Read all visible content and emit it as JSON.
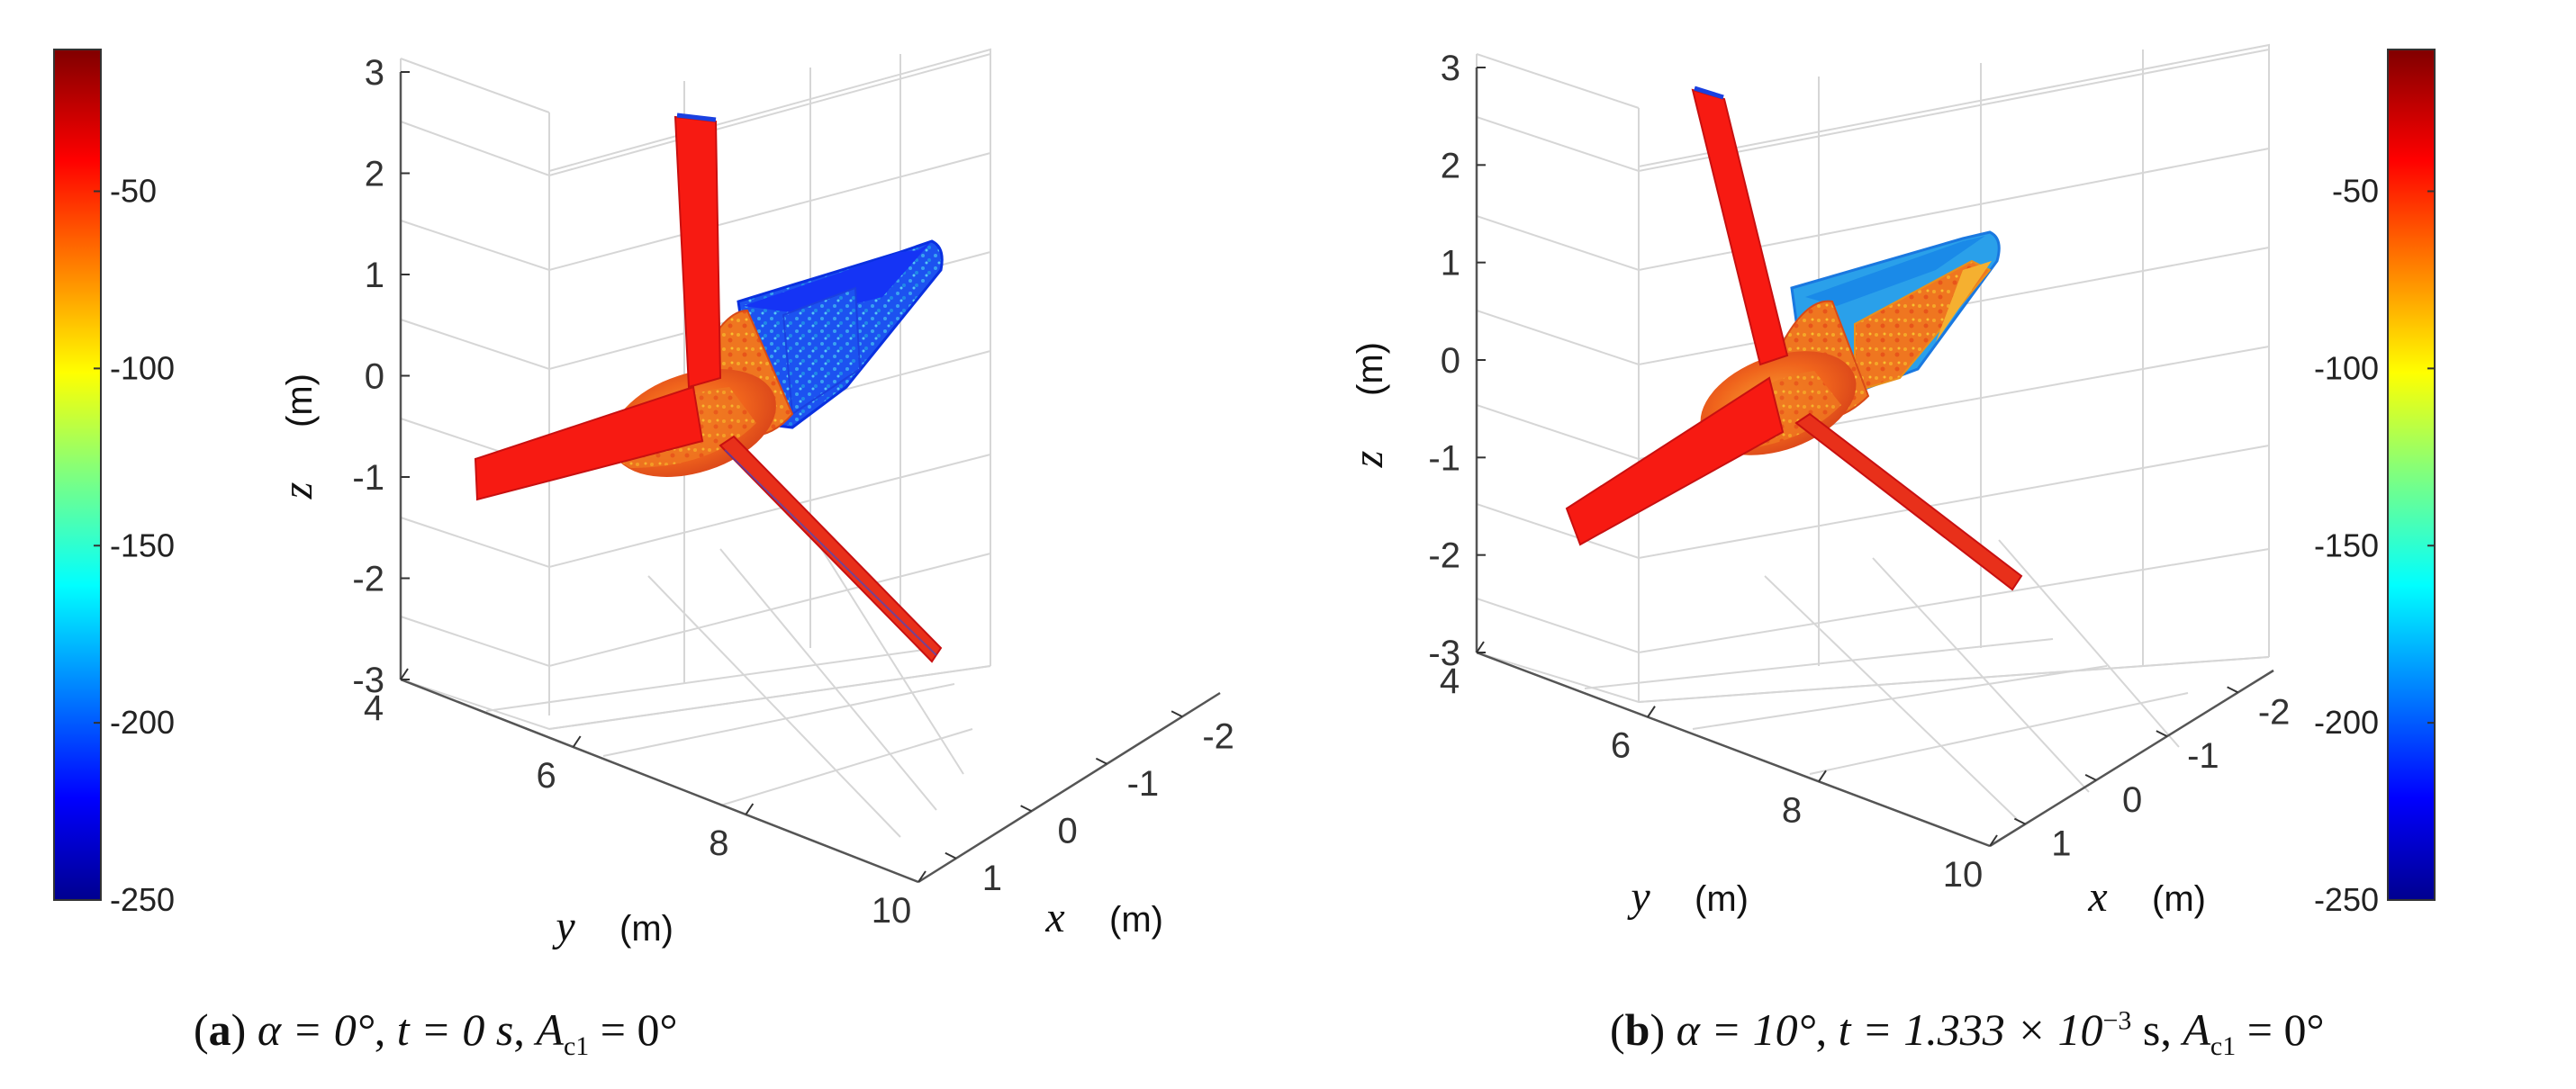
{
  "chart_data": [
    {
      "id": "a",
      "type": "3d-surface",
      "title": "",
      "x_axis": {
        "label": "x",
        "unit": "(m)",
        "ticks": [
          "-2",
          "-1",
          "0",
          "1"
        ],
        "range": [
          -2.5,
          1.5
        ]
      },
      "y_axis": {
        "label": "y",
        "unit": "(m)",
        "ticks": [
          "4",
          "6",
          "8",
          "10"
        ],
        "range": [
          4,
          10
        ]
      },
      "z_axis": {
        "label": "z",
        "unit": "(m)",
        "ticks": [
          "3",
          "2",
          "1",
          "0",
          "-1",
          "-2",
          "-3"
        ],
        "range": [
          -3,
          3
        ]
      },
      "colorbar": {
        "ticks": [
          "-50",
          "-100",
          "-150",
          "-200",
          "-250"
        ],
        "range": [
          -250,
          -10
        ],
        "colormap": "jet",
        "placement": "left"
      },
      "caption": {
        "letter": "a",
        "alpha": "α = 0°",
        "t": "t = 0 s",
        "A_pre": "A",
        "A_sub": "c1",
        "A_post": " = 0°"
      },
      "surface_colors": {
        "blade": "#f71a12",
        "hub": "#f05818",
        "body": "#1534f5",
        "body_texture": "#2e8ae8"
      }
    },
    {
      "id": "b",
      "type": "3d-surface",
      "title": "",
      "x_axis": {
        "label": "x",
        "unit": "(m)",
        "ticks": [
          "-2",
          "-1",
          "0",
          "1"
        ],
        "range": [
          -2.5,
          1.5
        ]
      },
      "y_axis": {
        "label": "y",
        "unit": "(m)",
        "ticks": [
          "4",
          "6",
          "8",
          "10"
        ],
        "range": [
          4,
          10
        ]
      },
      "z_axis": {
        "label": "z",
        "unit": "(m)",
        "ticks": [
          "3",
          "2",
          "1",
          "0",
          "-1",
          "-2",
          "-3"
        ],
        "range": [
          -3,
          3
        ]
      },
      "colorbar": {
        "ticks": [
          "-50",
          "-100",
          "-150",
          "-200",
          "-250"
        ],
        "range": [
          -250,
          -10
        ],
        "colormap": "jet",
        "placement": "right"
      },
      "caption": {
        "letter": "b",
        "alpha": "α = 10°",
        "t_pre": "t = 1.333 × 10",
        "t_exp": "−3",
        "t_post": " s",
        "A_pre": "A",
        "A_sub": "c1",
        "A_post": " = 0°"
      },
      "surface_colors": {
        "blade": "#f71a12",
        "hub": "#ef6a18",
        "body": "#2aa0ea",
        "body_texture": "#f5a020"
      }
    }
  ]
}
